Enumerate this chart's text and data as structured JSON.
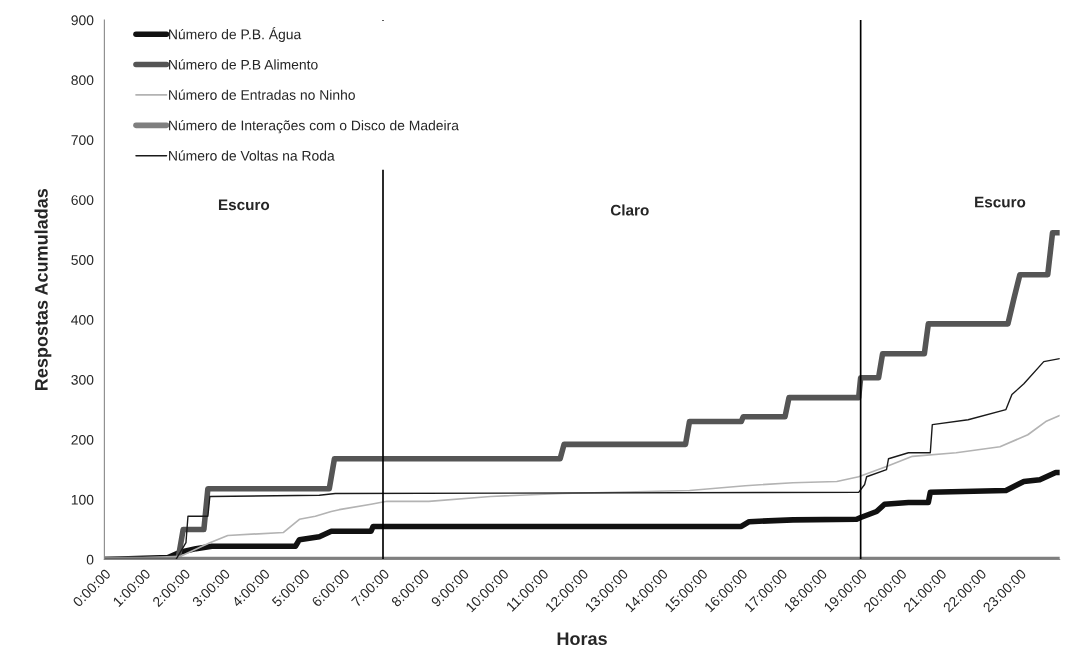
{
  "chart_data": {
    "type": "line",
    "xlabel": "Horas",
    "ylabel": "Respostas Acumuladas",
    "xlim": [
      0,
      24
    ],
    "ylim": [
      0,
      900
    ],
    "xticks": [
      {
        "value": 0,
        "label": "0:00:00"
      },
      {
        "value": 1,
        "label": "1:00:00"
      },
      {
        "value": 2,
        "label": "2:00:00"
      },
      {
        "value": 3,
        "label": "3:00:00"
      },
      {
        "value": 4,
        "label": "4:00:00"
      },
      {
        "value": 5,
        "label": "5:00:00"
      },
      {
        "value": 6,
        "label": "6:00:00"
      },
      {
        "value": 7,
        "label": "7:00:00"
      },
      {
        "value": 8,
        "label": "8:00:00"
      },
      {
        "value": 9,
        "label": "9:00:00"
      },
      {
        "value": 10,
        "label": "10:00:00"
      },
      {
        "value": 11,
        "label": "11:00:00"
      },
      {
        "value": 12,
        "label": "12:00:00"
      },
      {
        "value": 13,
        "label": "13:00:00"
      },
      {
        "value": 14,
        "label": "14:00:00"
      },
      {
        "value": 15,
        "label": "15:00:00"
      },
      {
        "value": 16,
        "label": "16:00:00"
      },
      {
        "value": 17,
        "label": "17:00:00"
      },
      {
        "value": 18,
        "label": "18:00:00"
      },
      {
        "value": 19,
        "label": "19:00:00"
      },
      {
        "value": 20,
        "label": "20:00:00"
      },
      {
        "value": 21,
        "label": "21:00:00"
      },
      {
        "value": 22,
        "label": "22:00:00"
      },
      {
        "value": 23,
        "label": "23:00:00"
      }
    ],
    "yticks": [
      0,
      100,
      200,
      300,
      400,
      500,
      600,
      700,
      800,
      900
    ],
    "grid": false,
    "legend": "top left",
    "marker": "none",
    "line_style": "solid",
    "ref_lines": [
      {
        "axis": "x",
        "value": 7,
        "color": "#000000"
      },
      {
        "axis": "x",
        "value": 19,
        "color": "#000000"
      }
    ],
    "annotations": [
      "Escuro",
      "Claro",
      "Escuro"
    ],
    "series": [
      {
        "name": "Número de P.B. Água",
        "color": "#111111",
        "x": [
          0,
          1.6,
          1.9,
          2.3,
          2.7,
          4.8,
          4.9,
          5.4,
          5.7,
          6.7,
          6.75,
          16.0,
          16.2,
          17.3,
          18.9,
          19.0,
          19.4,
          19.6,
          20.2,
          20.7,
          20.75,
          22.65,
          23.1,
          23.5,
          23.9,
          24
        ],
        "values": [
          0,
          3,
          12,
          18,
          22,
          22,
          33,
          38,
          47,
          47,
          55,
          55,
          63,
          66,
          67,
          70,
          80,
          92,
          95,
          95,
          112,
          115,
          130,
          133,
          145,
          145
        ]
      },
      {
        "name": "Número de P.B Alimento",
        "color": "#555555",
        "x": [
          0,
          1.85,
          1.98,
          2.5,
          2.6,
          5.65,
          5.78,
          11.45,
          11.55,
          14.6,
          14.7,
          16.0,
          16.05,
          17.1,
          17.2,
          18.95,
          19.0,
          19.45,
          19.55,
          20.6,
          20.7,
          22.7,
          22.85,
          23.0,
          23.7,
          23.82,
          24
        ],
        "values": [
          0,
          0,
          50,
          50,
          118,
          118,
          168,
          168,
          192,
          192,
          230,
          230,
          238,
          238,
          270,
          270,
          303,
          303,
          343,
          343,
          393,
          393,
          435,
          475,
          475,
          545,
          545
        ]
      },
      {
        "name": "Número de Entradas no Ninho",
        "color": "#b3b3b3",
        "x": [
          0,
          1.9,
          2.65,
          3.1,
          4.5,
          4.9,
          5.3,
          5.7,
          5.9,
          6.7,
          7.1,
          8.15,
          9.7,
          11.5,
          14.7,
          16.1,
          17.3,
          18.4,
          18.95,
          19.65,
          20.3,
          21.4,
          22.5,
          23.2,
          23.65,
          24
        ],
        "values": [
          0,
          5,
          28,
          40,
          45,
          67,
          72,
          80,
          83,
          92,
          97,
          97,
          105,
          110,
          115,
          123,
          128,
          130,
          138,
          155,
          172,
          178,
          188,
          208,
          230,
          240
        ]
      },
      {
        "name": "Número de Interações com o Disco de Madeira",
        "color": "#7f7f7f",
        "x": [
          0,
          24
        ],
        "values": [
          0,
          0
        ]
      },
      {
        "name": "Número de Voltas na Roda",
        "color": "#1a1a1a",
        "x": [
          0,
          1.8,
          2.05,
          2.1,
          2.6,
          2.65,
          5.4,
          5.8,
          18.95,
          19.1,
          19.15,
          19.65,
          19.7,
          20.2,
          20.75,
          20.8,
          21.7,
          22.65,
          22.8,
          23.1,
          23.6,
          24
        ],
        "values": [
          0,
          0,
          28,
          72,
          72,
          105,
          107,
          110,
          112,
          125,
          138,
          150,
          168,
          178,
          178,
          225,
          233,
          250,
          275,
          293,
          330,
          335
        ]
      }
    ]
  }
}
